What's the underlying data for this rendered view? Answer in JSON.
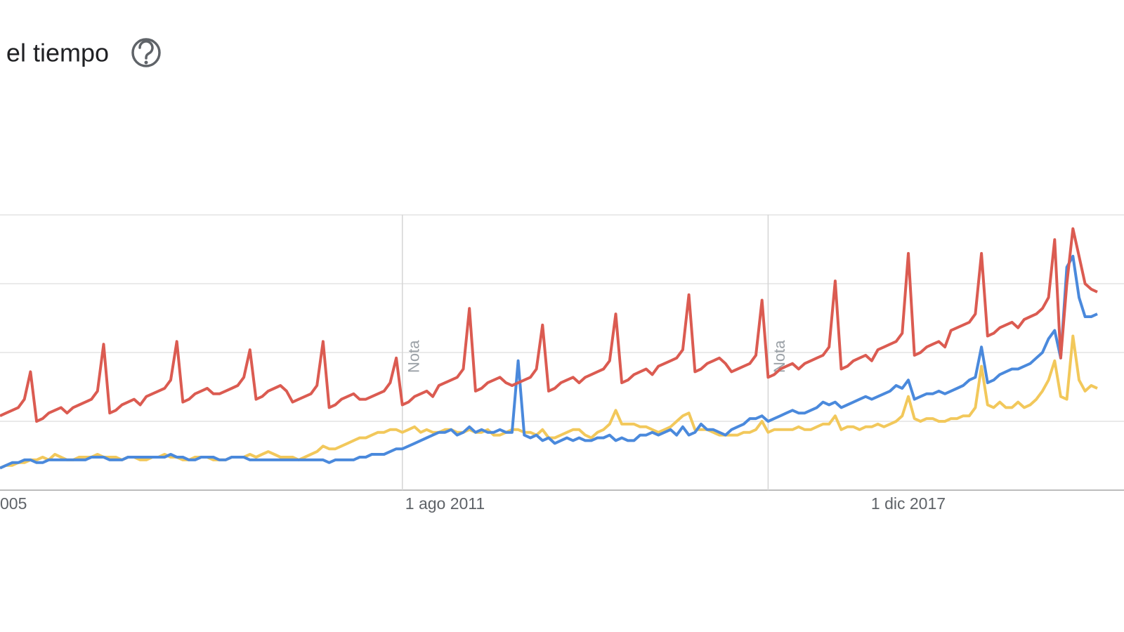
{
  "title": "el tiempo",
  "chart_data": {
    "type": "line",
    "x": [
      "2005-07",
      "2005-08",
      "2005-09",
      "2005-10",
      "2005-11",
      "2005-12",
      "2006-01",
      "2006-02",
      "2006-03",
      "2006-04",
      "2006-05",
      "2006-06",
      "2006-07",
      "2006-08",
      "2006-09",
      "2006-10",
      "2006-11",
      "2006-12",
      "2007-01",
      "2007-02",
      "2007-03",
      "2007-04",
      "2007-05",
      "2007-06",
      "2007-07",
      "2007-08",
      "2007-09",
      "2007-10",
      "2007-11",
      "2007-12",
      "2008-01",
      "2008-02",
      "2008-03",
      "2008-04",
      "2008-05",
      "2008-06",
      "2008-07",
      "2008-08",
      "2008-09",
      "2008-10",
      "2008-11",
      "2008-12",
      "2009-01",
      "2009-02",
      "2009-03",
      "2009-04",
      "2009-05",
      "2009-06",
      "2009-07",
      "2009-08",
      "2009-09",
      "2009-10",
      "2009-11",
      "2009-12",
      "2010-01",
      "2010-02",
      "2010-03",
      "2010-04",
      "2010-05",
      "2010-06",
      "2010-07",
      "2010-08",
      "2010-09",
      "2010-10",
      "2010-11",
      "2010-12",
      "2011-01",
      "2011-02",
      "2011-03",
      "2011-04",
      "2011-05",
      "2011-06",
      "2011-07",
      "2011-08",
      "2011-09",
      "2011-10",
      "2011-11",
      "2011-12",
      "2012-01",
      "2012-02",
      "2012-03",
      "2012-04",
      "2012-05",
      "2012-06",
      "2012-07",
      "2012-08",
      "2012-09",
      "2012-10",
      "2012-11",
      "2012-12",
      "2013-01",
      "2013-02",
      "2013-03",
      "2013-04",
      "2013-05",
      "2013-06",
      "2013-07",
      "2013-08",
      "2013-09",
      "2013-10",
      "2013-11",
      "2013-12",
      "2014-01",
      "2014-02",
      "2014-03",
      "2014-04",
      "2014-05",
      "2014-06",
      "2014-07",
      "2014-08",
      "2014-09",
      "2014-10",
      "2014-11",
      "2014-12",
      "2015-01",
      "2015-02",
      "2015-03",
      "2015-04",
      "2015-05",
      "2015-06",
      "2015-07",
      "2015-08",
      "2015-09",
      "2015-10",
      "2015-11",
      "2015-12",
      "2016-01",
      "2016-02",
      "2016-03",
      "2016-04",
      "2016-05",
      "2016-06",
      "2016-07",
      "2016-08",
      "2016-09",
      "2016-10",
      "2016-11",
      "2016-12",
      "2017-01",
      "2017-02",
      "2017-03",
      "2017-04",
      "2017-05",
      "2017-06",
      "2017-07",
      "2017-08",
      "2017-09",
      "2017-10",
      "2017-11",
      "2017-12",
      "2018-01",
      "2018-02",
      "2018-03",
      "2018-04",
      "2018-05",
      "2018-06",
      "2018-07",
      "2018-08",
      "2018-09",
      "2018-10",
      "2018-11",
      "2018-12",
      "2019-01",
      "2019-02",
      "2019-03",
      "2019-04",
      "2019-05",
      "2019-06",
      "2019-07",
      "2019-08",
      "2019-09",
      "2019-10",
      "2019-11",
      "2019-12",
      "2020-01",
      "2020-02",
      "2020-03",
      "2020-04",
      "2020-05",
      "2020-06",
      "2020-07"
    ],
    "series": [
      {
        "color": "#db5b51",
        "values": [
          27,
          28,
          29,
          30,
          33,
          43,
          25,
          26,
          28,
          29,
          30,
          28,
          30,
          31,
          32,
          33,
          36,
          53,
          28,
          29,
          31,
          32,
          33,
          31,
          34,
          35,
          36,
          37,
          40,
          54,
          32,
          33,
          35,
          36,
          37,
          35,
          35,
          36,
          37,
          38,
          41,
          51,
          33,
          34,
          36,
          37,
          38,
          36,
          32,
          33,
          34,
          35,
          38,
          54,
          30,
          31,
          33,
          34,
          35,
          33,
          33,
          34,
          35,
          36,
          39,
          48,
          31,
          32,
          34,
          35,
          36,
          34,
          38,
          39,
          40,
          41,
          44,
          66,
          36,
          37,
          39,
          40,
          41,
          39,
          38,
          39,
          40,
          41,
          44,
          60,
          36,
          37,
          39,
          40,
          41,
          39,
          41,
          42,
          43,
          44,
          47,
          64,
          39,
          40,
          42,
          43,
          44,
          42,
          45,
          46,
          47,
          48,
          51,
          71,
          43,
          44,
          46,
          47,
          48,
          46,
          43,
          44,
          45,
          46,
          49,
          69,
          41,
          42,
          44,
          45,
          46,
          44,
          46,
          47,
          48,
          49,
          52,
          76,
          44,
          45,
          47,
          48,
          49,
          47,
          51,
          52,
          53,
          54,
          57,
          86,
          49,
          50,
          52,
          53,
          54,
          52,
          58,
          59,
          60,
          61,
          64,
          86,
          56,
          57,
          59,
          60,
          61,
          59,
          62,
          63,
          64,
          66,
          70,
          91,
          48,
          75,
          95,
          85,
          75,
          73,
          72
        ]
      },
      {
        "color": "#4a89dc",
        "values": [
          8,
          9,
          10,
          10,
          11,
          11,
          10,
          10,
          11,
          11,
          11,
          11,
          11,
          11,
          11,
          12,
          12,
          12,
          11,
          11,
          11,
          12,
          12,
          12,
          12,
          12,
          12,
          12,
          13,
          12,
          12,
          11,
          11,
          12,
          12,
          12,
          11,
          11,
          12,
          12,
          12,
          11,
          11,
          11,
          11,
          11,
          11,
          11,
          11,
          11,
          11,
          11,
          11,
          11,
          10,
          11,
          11,
          11,
          11,
          12,
          12,
          13,
          13,
          13,
          14,
          15,
          15,
          16,
          17,
          18,
          19,
          20,
          21,
          21,
          22,
          20,
          21,
          23,
          21,
          22,
          21,
          21,
          22,
          21,
          21,
          47,
          20,
          19,
          20,
          18,
          19,
          17,
          18,
          19,
          18,
          19,
          18,
          18,
          19,
          19,
          20,
          18,
          19,
          18,
          18,
          20,
          20,
          21,
          20,
          21,
          22,
          20,
          23,
          20,
          21,
          24,
          22,
          22,
          21,
          20,
          22,
          23,
          24,
          26,
          26,
          27,
          25,
          26,
          27,
          28,
          29,
          28,
          28,
          29,
          30,
          32,
          31,
          32,
          30,
          31,
          32,
          33,
          34,
          33,
          34,
          35,
          36,
          38,
          37,
          40,
          33,
          34,
          35,
          35,
          36,
          35,
          36,
          37,
          38,
          40,
          41,
          52,
          39,
          40,
          42,
          43,
          44,
          44,
          45,
          46,
          48,
          50,
          55,
          58,
          48,
          81,
          85,
          70,
          63,
          63,
          64
        ]
      },
      {
        "color": "#f2c85b",
        "values": [
          8,
          9,
          9,
          10,
          10,
          11,
          11,
          12,
          11,
          13,
          12,
          11,
          11,
          12,
          12,
          12,
          13,
          12,
          12,
          12,
          11,
          12,
          12,
          11,
          11,
          12,
          12,
          13,
          12,
          12,
          11,
          11,
          12,
          12,
          12,
          11,
          11,
          11,
          12,
          12,
          12,
          13,
          12,
          13,
          14,
          13,
          12,
          12,
          12,
          11,
          12,
          13,
          14,
          16,
          15,
          15,
          16,
          17,
          18,
          19,
          19,
          20,
          21,
          21,
          22,
          22,
          21,
          22,
          23,
          21,
          22,
          21,
          21,
          22,
          22,
          21,
          21,
          22,
          21,
          21,
          22,
          20,
          20,
          21,
          22,
          22,
          21,
          21,
          20,
          22,
          19,
          19,
          20,
          21,
          22,
          22,
          20,
          19,
          21,
          22,
          24,
          29,
          24,
          24,
          24,
          23,
          23,
          22,
          21,
          22,
          23,
          25,
          27,
          28,
          22,
          22,
          22,
          21,
          20,
          20,
          20,
          20,
          21,
          21,
          22,
          25,
          21,
          22,
          22,
          22,
          22,
          23,
          22,
          22,
          23,
          24,
          24,
          27,
          22,
          23,
          23,
          22,
          23,
          23,
          24,
          23,
          24,
          25,
          27,
          34,
          26,
          25,
          26,
          26,
          25,
          25,
          26,
          26,
          27,
          27,
          30,
          45,
          31,
          30,
          32,
          30,
          30,
          32,
          30,
          31,
          33,
          36,
          40,
          47,
          34,
          33,
          56,
          40,
          36,
          38,
          37
        ]
      }
    ],
    "xlim": [
      "2005-07",
      "2020-07"
    ],
    "xticks": [
      {
        "value": "2005-04",
        "label": "005"
      },
      {
        "value": "2011-08",
        "label": "1 ago 2011"
      },
      {
        "value": "2017-12",
        "label": "1 dic 2017"
      }
    ],
    "ylim": [
      0,
      100
    ],
    "yticks": [
      0,
      25,
      50,
      75,
      100
    ],
    "grid": true,
    "annotations": [
      {
        "x": "2011-01",
        "text": "Nota"
      },
      {
        "x": "2016-01",
        "text": "Nota"
      }
    ]
  }
}
